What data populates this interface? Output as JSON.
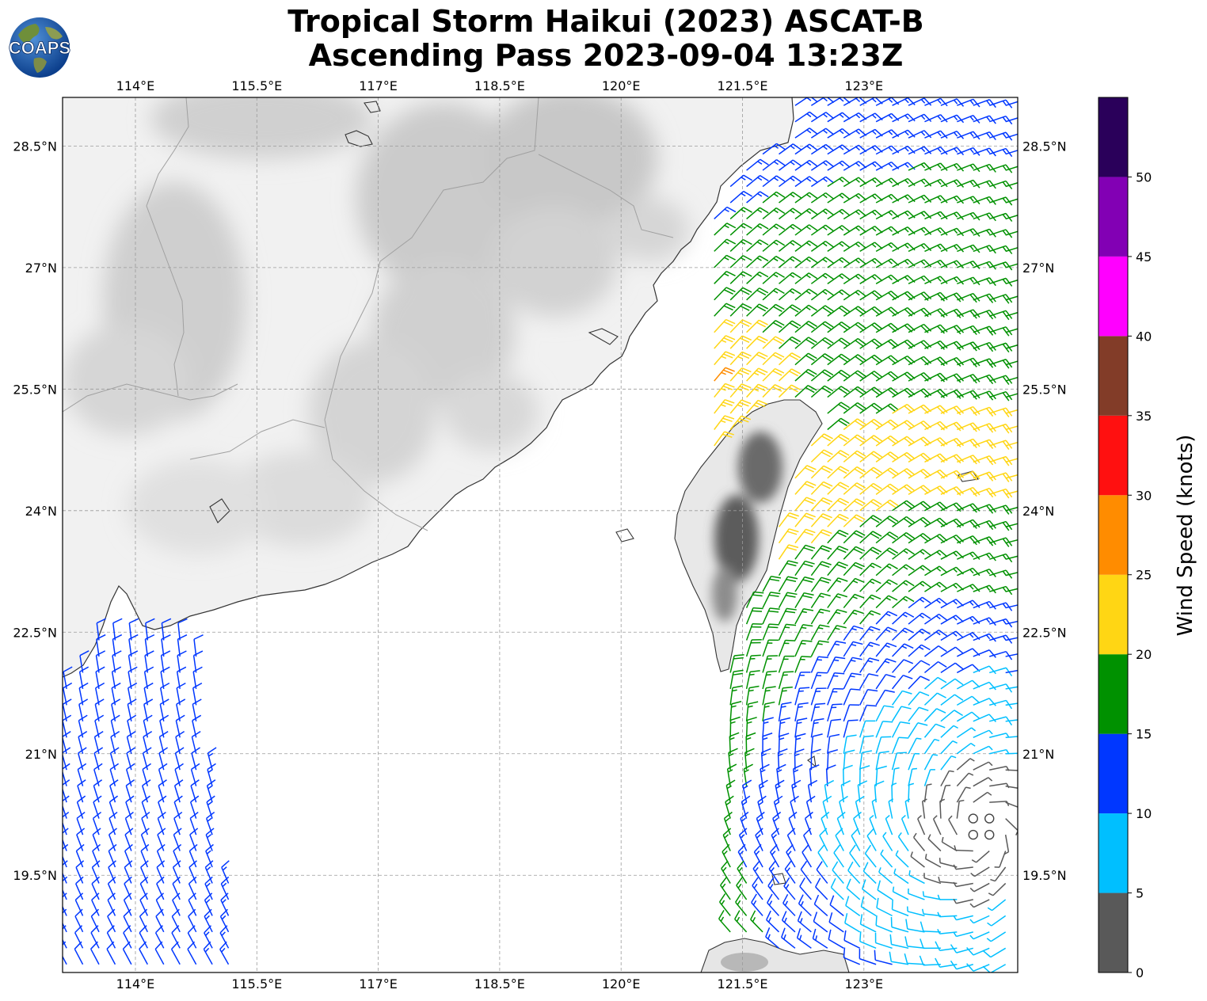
{
  "title": {
    "line1": "Tropical Storm Haikui (2023) ASCAT-B",
    "line2": "Ascending Pass 2023-09-04 13:23Z"
  },
  "logo": {
    "text": "COAPS",
    "icon": "globe-logo-icon"
  },
  "map": {
    "lon_range": [
      113.1,
      124.9
    ],
    "lat_range": [
      18.3,
      29.1
    ],
    "lon_ticks": [
      {
        "value": 114.0,
        "label": "114°E"
      },
      {
        "value": 115.5,
        "label": "115.5°E"
      },
      {
        "value": 117.0,
        "label": "117°E"
      },
      {
        "value": 118.5,
        "label": "118.5°E"
      },
      {
        "value": 120.0,
        "label": "120°E"
      },
      {
        "value": 121.5,
        "label": "121.5°E"
      },
      {
        "value": 123.0,
        "label": "123°E"
      }
    ],
    "lat_ticks": [
      {
        "value": 28.5,
        "label": "28.5°N"
      },
      {
        "value": 27.0,
        "label": "27°N"
      },
      {
        "value": 25.5,
        "label": "25.5°N"
      },
      {
        "value": 24.0,
        "label": "24°N"
      },
      {
        "value": 22.5,
        "label": "22.5°N"
      },
      {
        "value": 21.0,
        "label": "21°N"
      },
      {
        "value": 19.5,
        "label": "19.5°N"
      }
    ],
    "gridlines": true,
    "basemap": "grayscale terrain with coastlines"
  },
  "colorbar": {
    "label": "Wind Speed (knots)",
    "ticks": [
      "0",
      "5",
      "10",
      "15",
      "20",
      "25",
      "30",
      "35",
      "40",
      "45",
      "50"
    ],
    "bins": [
      {
        "min": 0,
        "max": 5,
        "color": "#595959"
      },
      {
        "min": 5,
        "max": 10,
        "color": "#00bfff"
      },
      {
        "min": 10,
        "max": 15,
        "color": "#0037ff"
      },
      {
        "min": 15,
        "max": 20,
        "color": "#009100"
      },
      {
        "min": 20,
        "max": 25,
        "color": "#ffd614"
      },
      {
        "min": 25,
        "max": 30,
        "color": "#ff8c00"
      },
      {
        "min": 30,
        "max": 35,
        "color": "#ff1010"
      },
      {
        "min": 35,
        "max": 40,
        "color": "#823c28"
      },
      {
        "min": 40,
        "max": 45,
        "color": "#ff00ff"
      },
      {
        "min": 45,
        "max": 50,
        "color": "#8200b4"
      },
      {
        "min": 50,
        "max": 55,
        "color": "#2a005a"
      }
    ]
  },
  "wind_field": {
    "storm_center": {
      "lon": 124.45,
      "lat": 20.05
    },
    "calm_marker": "circle"
  }
}
